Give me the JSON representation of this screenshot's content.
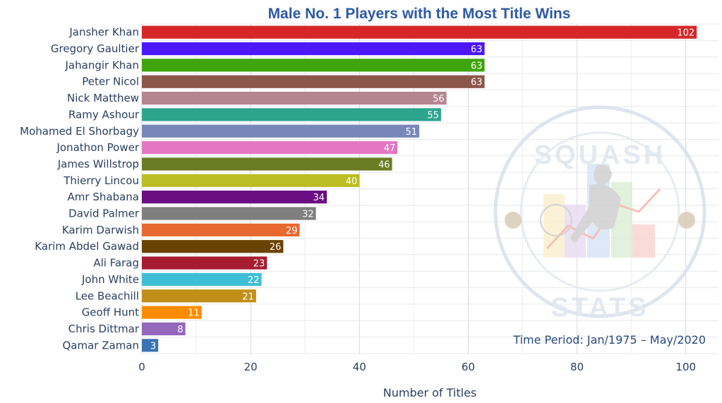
{
  "chart_data": {
    "type": "bar",
    "orientation": "horizontal",
    "title": "Male No. 1 Players with the Most Title Wins",
    "xlabel": "Number of Titles",
    "ylabel": "",
    "xlim": [
      0,
      106
    ],
    "xticks": [
      0,
      20,
      40,
      60,
      80,
      100
    ],
    "grid": true,
    "annotation": "Time Period: Jan/1975 – May/2020",
    "categories": [
      "Jansher Khan",
      "Gregory Gaultier",
      "Jahangir Khan",
      "Peter Nicol",
      "Nick Matthew",
      "Ramy Ashour",
      "Mohamed El Shorbagy",
      "Jonathon Power",
      "James Willstrop",
      "Thierry Lincou",
      "Amr Shabana",
      "David Palmer",
      "Karim Darwish",
      "Karim Abdel Gawad",
      "Ali Farag",
      "John White",
      "Lee Beachill",
      "Geoff Hunt",
      "Chris Dittmar",
      "Qamar Zaman"
    ],
    "values": [
      102,
      63,
      63,
      63,
      56,
      55,
      51,
      47,
      46,
      40,
      34,
      32,
      29,
      26,
      23,
      22,
      21,
      11,
      8,
      3
    ],
    "colors": [
      "#d62728",
      "#4d17ff",
      "#3fa50e",
      "#8c564b",
      "#b58590",
      "#2ca58d",
      "#7787b7",
      "#e377c2",
      "#6b7c24",
      "#bcbd22",
      "#6a0d83",
      "#7f7f7f",
      "#e8692f",
      "#6b4300",
      "#a51c30",
      "#3fbfd6",
      "#c18f18",
      "#ff8c00",
      "#9467bd",
      "#3b73b3"
    ]
  },
  "watermark": {
    "top_text": "SQUASH",
    "bottom_text": "STATS"
  }
}
